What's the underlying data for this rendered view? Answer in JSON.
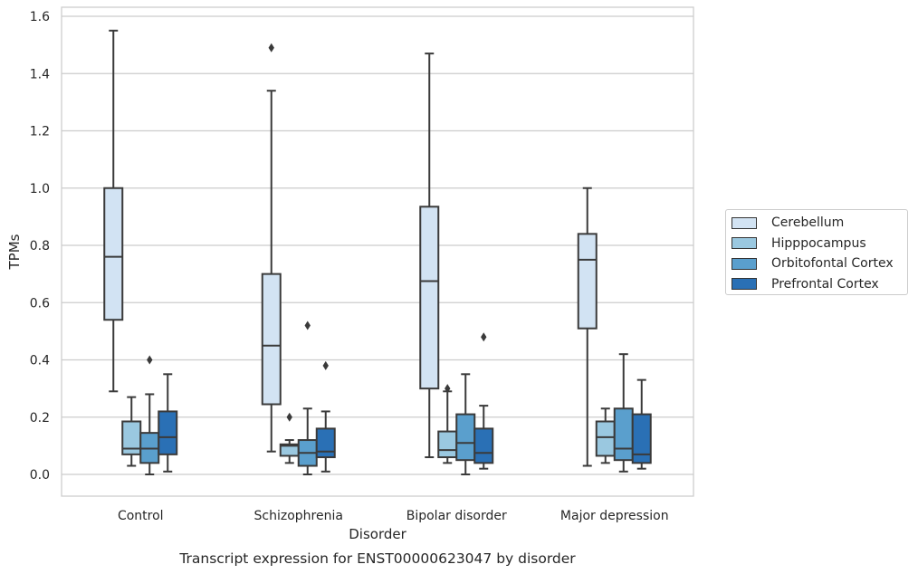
{
  "chart_data": {
    "type": "box",
    "caption": "Transcript expression for ENST00000623047 by disorder",
    "xlabel": "Disorder",
    "ylabel": "TPMs",
    "ylim": [
      -0.075,
      1.63
    ],
    "yticks": [
      "0.0",
      "0.2",
      "0.4",
      "0.6",
      "0.8",
      "1.0",
      "1.2",
      "1.4",
      "1.6"
    ],
    "grid": "horizontal",
    "legend_placement": "right",
    "categories": [
      "Control",
      "Schizophrenia",
      "Bipolar disorder",
      "Major depression"
    ],
    "series": [
      {
        "name": "Cerebellum",
        "color": "#d2e3f3",
        "boxes": [
          {
            "whislo": 0.29,
            "q1": 0.54,
            "med": 0.76,
            "q3": 1.0,
            "whishi": 1.55,
            "fliers": []
          },
          {
            "whislo": 0.08,
            "q1": 0.245,
            "med": 0.45,
            "q3": 0.7,
            "whishi": 1.34,
            "fliers": [
              1.49
            ]
          },
          {
            "whislo": 0.06,
            "q1": 0.3,
            "med": 0.675,
            "q3": 0.935,
            "whishi": 1.47,
            "fliers": []
          },
          {
            "whislo": 0.03,
            "q1": 0.51,
            "med": 0.75,
            "q3": 0.84,
            "whishi": 1.0,
            "fliers": []
          }
        ]
      },
      {
        "name": "Hipppocampus",
        "color": "#9ac8e0",
        "boxes": [
          {
            "whislo": 0.03,
            "q1": 0.07,
            "med": 0.09,
            "q3": 0.185,
            "whishi": 0.27,
            "fliers": []
          },
          {
            "whislo": 0.04,
            "q1": 0.065,
            "med": 0.1,
            "q3": 0.105,
            "whishi": 0.12,
            "fliers": [
              0.2
            ]
          },
          {
            "whislo": 0.04,
            "q1": 0.06,
            "med": 0.085,
            "q3": 0.15,
            "whishi": 0.29,
            "fliers": [
              0.3
            ]
          },
          {
            "whislo": 0.04,
            "q1": 0.065,
            "med": 0.13,
            "q3": 0.185,
            "whishi": 0.23,
            "fliers": []
          }
        ]
      },
      {
        "name": "Orbitofontal Cortex",
        "color": "#5a9fcd",
        "boxes": [
          {
            "whislo": 0.0,
            "q1": 0.04,
            "med": 0.09,
            "q3": 0.145,
            "whishi": 0.28,
            "fliers": [
              0.4
            ]
          },
          {
            "whislo": 0.0,
            "q1": 0.03,
            "med": 0.075,
            "q3": 0.12,
            "whishi": 0.23,
            "fliers": [
              0.52
            ]
          },
          {
            "whislo": 0.0,
            "q1": 0.05,
            "med": 0.11,
            "q3": 0.21,
            "whishi": 0.35,
            "fliers": []
          },
          {
            "whislo": 0.01,
            "q1": 0.05,
            "med": 0.09,
            "q3": 0.23,
            "whishi": 0.42,
            "fliers": []
          }
        ]
      },
      {
        "name": "Prefrontal Cortex",
        "color": "#2a70b5",
        "boxes": [
          {
            "whislo": 0.01,
            "q1": 0.07,
            "med": 0.13,
            "q3": 0.22,
            "whishi": 0.35,
            "fliers": []
          },
          {
            "whislo": 0.01,
            "q1": 0.06,
            "med": 0.08,
            "q3": 0.16,
            "whishi": 0.22,
            "fliers": [
              0.38
            ]
          },
          {
            "whislo": 0.02,
            "q1": 0.04,
            "med": 0.075,
            "q3": 0.16,
            "whishi": 0.24,
            "fliers": [
              0.48
            ]
          },
          {
            "whislo": 0.02,
            "q1": 0.04,
            "med": 0.07,
            "q3": 0.21,
            "whishi": 0.33,
            "fliers": []
          }
        ]
      }
    ]
  }
}
